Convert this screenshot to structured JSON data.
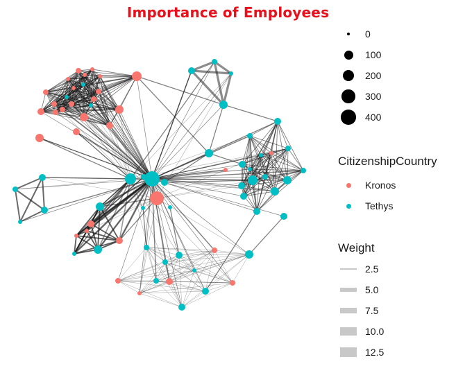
{
  "title": "Importance of Employees",
  "colors": {
    "kronos": "#f8766d",
    "tethys": "#00bfc4",
    "title": "#e8101a",
    "edge": "#1a1a1a"
  },
  "legend_size": {
    "title": "",
    "items": [
      {
        "label": "0",
        "value": 0
      },
      {
        "label": "100",
        "value": 100
      },
      {
        "label": "200",
        "value": 200
      },
      {
        "label": "300",
        "value": 300
      },
      {
        "label": "400",
        "value": 400
      }
    ]
  },
  "legend_country": {
    "title": "CitizenshipCountry",
    "items": [
      {
        "label": "Kronos",
        "color": "#f8766d"
      },
      {
        "label": "Tethys",
        "color": "#00bfc4"
      }
    ]
  },
  "legend_weight": {
    "title": "Weight",
    "items": [
      {
        "label": "2.5",
        "value": 2.5
      },
      {
        "label": "5.0",
        "value": 5.0
      },
      {
        "label": "7.5",
        "value": 7.5
      },
      {
        "label": "10.0",
        "value": 10.0
      },
      {
        "label": "12.5",
        "value": 12.5
      }
    ]
  }
}
